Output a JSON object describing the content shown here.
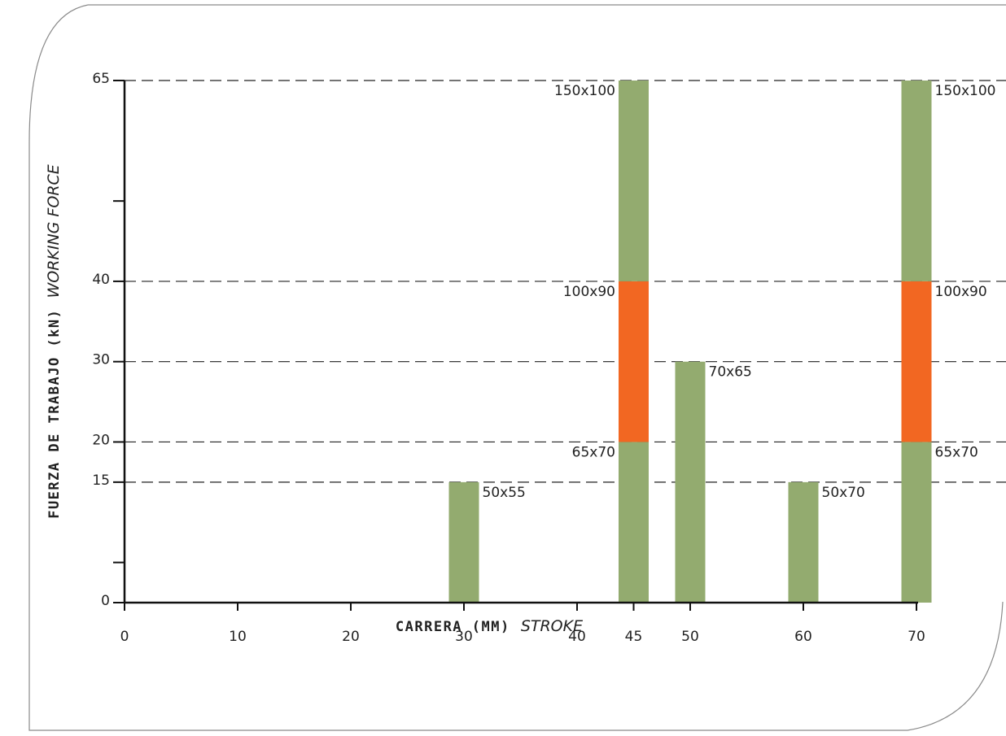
{
  "chart_data": {
    "type": "bar",
    "xlabel": "CARRERA (MM)",
    "xlabel_en": "STROKE",
    "ylabel": "FUERZA DE TRABAJO (kN)",
    "ylabel_en": "WORKING FORCE",
    "xlim": [
      0,
      70
    ],
    "ylim": [
      0,
      65
    ],
    "x_ticks": [
      0,
      10,
      20,
      30,
      40,
      45,
      50,
      60,
      70
    ],
    "y_ticks_labeled": [
      0,
      15,
      20,
      30,
      40,
      65
    ],
    "y_ticks_minor": [
      5,
      50
    ],
    "gridlines_y": [
      15,
      20,
      30,
      40,
      65
    ],
    "colors": {
      "green": "#93ab6f",
      "orange": "#f26722"
    },
    "bars": [
      {
        "x": 30,
        "segments": [
          {
            "from": 0,
            "to": 15,
            "color": "green",
            "label": "50x55",
            "label_side": "right",
            "label_anchor": "top"
          }
        ]
      },
      {
        "x": 45,
        "segments": [
          {
            "from": 0,
            "to": 20,
            "color": "green",
            "label": "65x70",
            "label_side": "left",
            "label_anchor": "top"
          },
          {
            "from": 20,
            "to": 40,
            "color": "orange",
            "label": "100x90",
            "label_side": "left",
            "label_anchor": "top"
          },
          {
            "from": 40,
            "to": 65,
            "color": "green",
            "label": "150x100",
            "label_side": "left",
            "label_anchor": "top"
          }
        ]
      },
      {
        "x": 50,
        "segments": [
          {
            "from": 0,
            "to": 30,
            "color": "green",
            "label": "70x65",
            "label_side": "right",
            "label_anchor": "top"
          }
        ]
      },
      {
        "x": 60,
        "segments": [
          {
            "from": 0,
            "to": 15,
            "color": "green",
            "label": "50x70",
            "label_side": "right",
            "label_anchor": "top"
          }
        ]
      },
      {
        "x": 70,
        "segments": [
          {
            "from": 0,
            "to": 20,
            "color": "green",
            "label": "65x70",
            "label_side": "right",
            "label_anchor": "top"
          },
          {
            "from": 20,
            "to": 40,
            "color": "orange",
            "label": "100x90",
            "label_side": "right",
            "label_anchor": "top"
          },
          {
            "from": 40,
            "to": 65,
            "color": "green",
            "label": "150x100",
            "label_side": "right",
            "label_anchor": "top"
          }
        ]
      }
    ]
  }
}
